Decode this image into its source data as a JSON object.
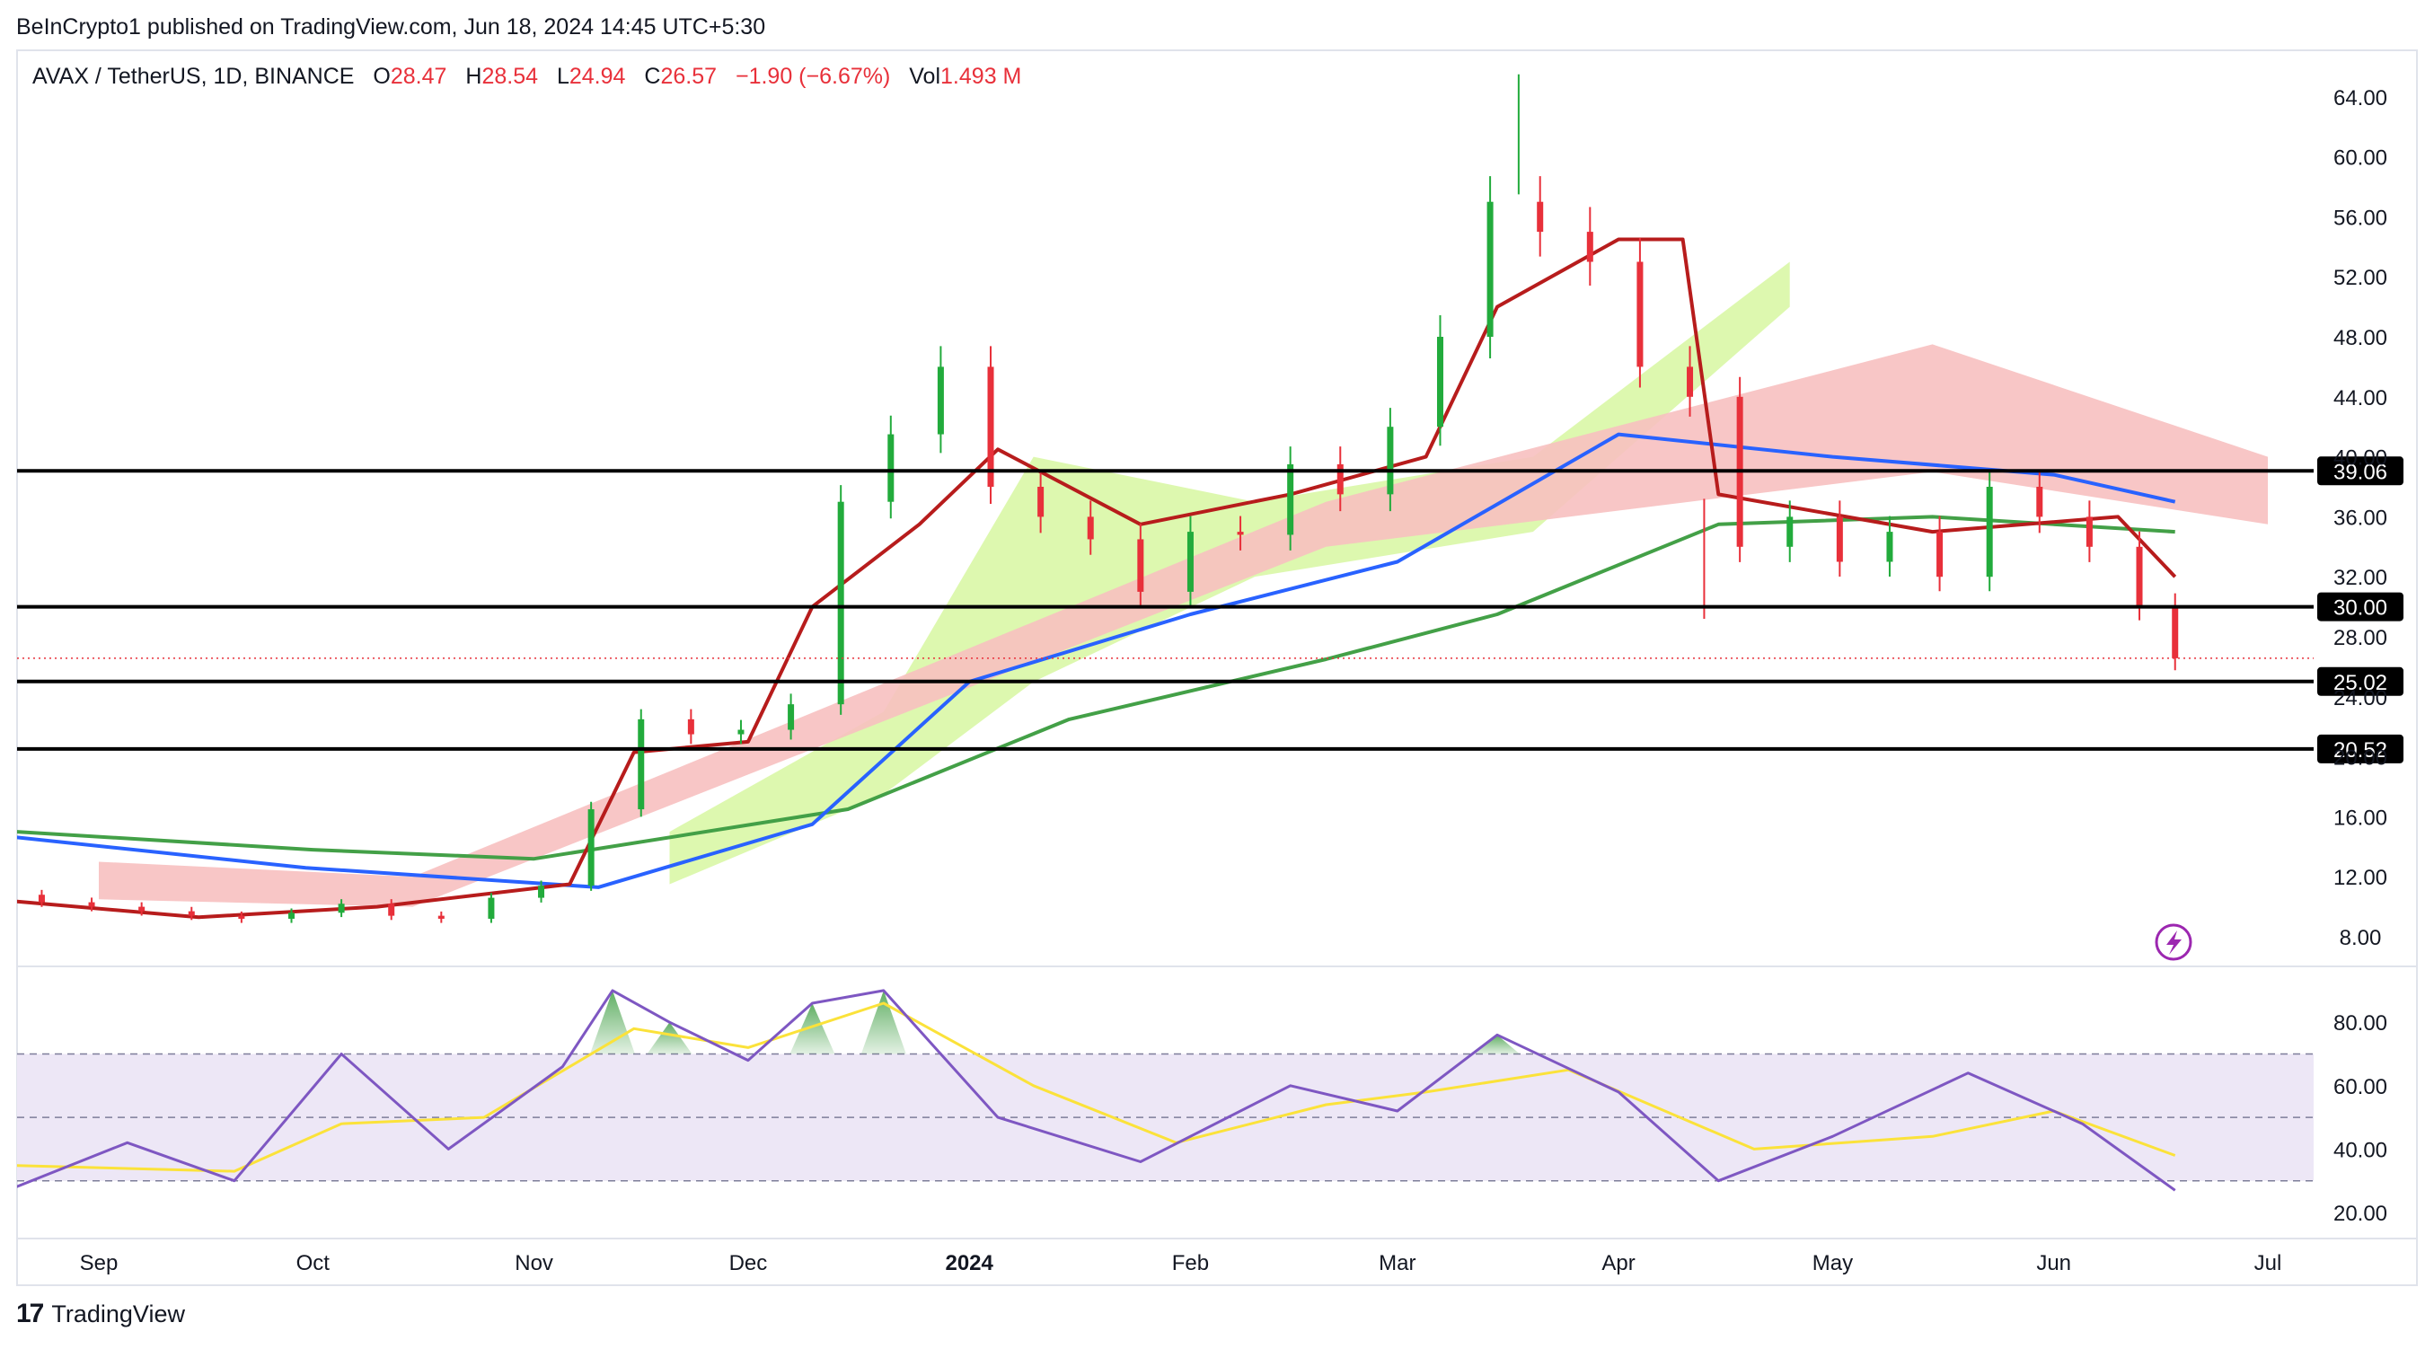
{
  "publisher": "BeInCrypto1 published on TradingView.com, Jun 18, 2024 14:45 UTC+5:30",
  "footer": {
    "logo_icon": "tradingview-logo-icon",
    "brand": "TradingView"
  },
  "colors": {
    "up": "#26a69a",
    "down": "#ef5350",
    "candle_up": "#22ab3c",
    "candle_down": "#e8303a",
    "ma_blue": "#2962ff",
    "ma_green": "#43a047",
    "ma_red": "#b71c1c",
    "cloud_bull": "#d9f7a6",
    "cloud_bear": "#f7c0c0",
    "rsi": "#7e57c2",
    "rsi_ma": "#fbe23a",
    "rsi_band": "#ede7f6"
  },
  "chart_data": [
    {
      "type": "candlestick",
      "header": {
        "symbol": "AVAX / TetherUS, 1D, BINANCE",
        "o_label": "O",
        "o": "28.47",
        "h_label": "H",
        "h": "28.54",
        "l_label": "L",
        "l": "24.94",
        "c_label": "C",
        "c": "26.57",
        "change": "−1.90 (−6.67%)",
        "vol_label": "Vol",
        "vol": "1.493 M"
      },
      "yaxis_ticks": [
        "64.00",
        "60.00",
        "56.00",
        "52.00",
        "48.00",
        "44.00",
        "40.00",
        "36.00",
        "32.00",
        "28.00",
        "24.00",
        "20.00",
        "16.00",
        "12.00",
        "8.00"
      ],
      "ylim": [
        6,
        66
      ],
      "xaxis_ticks": [
        "Sep",
        "Oct",
        "Nov",
        "Dec",
        "2024",
        "Feb",
        "Mar",
        "Apr",
        "May",
        "Jun",
        "Jul"
      ],
      "xaxis_bold": "2024",
      "levels": [
        {
          "value": 39.06,
          "label": "39.06"
        },
        {
          "value": 30.0,
          "label": "30.00"
        },
        {
          "value": 25.02,
          "label": "25.02"
        },
        {
          "value": 20.52,
          "label": "20.52"
        }
      ],
      "last_price": 26.57,
      "series_price": [
        {
          "date": "2023-08-17",
          "close": 10.8
        },
        {
          "date": "2023-08-24",
          "close": 10.3
        },
        {
          "date": "2023-08-31",
          "close": 10.0
        },
        {
          "date": "2023-09-07",
          "close": 9.7
        },
        {
          "date": "2023-09-14",
          "close": 9.4
        },
        {
          "date": "2023-09-21",
          "close": 9.2
        },
        {
          "date": "2023-09-28",
          "close": 9.6
        },
        {
          "date": "2023-10-05",
          "close": 10.2
        },
        {
          "date": "2023-10-12",
          "close": 9.4
        },
        {
          "date": "2023-10-19",
          "close": 9.2
        },
        {
          "date": "2023-10-26",
          "close": 10.6
        },
        {
          "date": "2023-11-02",
          "close": 11.4
        },
        {
          "date": "2023-11-09",
          "close": 16.5
        },
        {
          "date": "2023-11-16",
          "close": 22.5
        },
        {
          "date": "2023-11-23",
          "close": 21.5
        },
        {
          "date": "2023-11-30",
          "close": 21.8
        },
        {
          "date": "2023-12-07",
          "close": 23.5
        },
        {
          "date": "2023-12-14",
          "close": 37.0
        },
        {
          "date": "2023-12-21",
          "close": 41.5
        },
        {
          "date": "2023-12-28",
          "close": 46.0
        },
        {
          "date": "2024-01-04",
          "close": 38.0
        },
        {
          "date": "2024-01-11",
          "close": 36.0
        },
        {
          "date": "2024-01-18",
          "close": 34.5
        },
        {
          "date": "2024-01-25",
          "close": 31.0
        },
        {
          "date": "2024-02-01",
          "close": 35.0
        },
        {
          "date": "2024-02-08",
          "close": 34.8
        },
        {
          "date": "2024-02-15",
          "close": 39.5
        },
        {
          "date": "2024-02-22",
          "close": 37.5
        },
        {
          "date": "2024-02-29",
          "close": 42.0
        },
        {
          "date": "2024-03-07",
          "close": 48.0
        },
        {
          "date": "2024-03-14",
          "close": 57.0
        },
        {
          "date": "2024-03-21",
          "close": 55.0
        },
        {
          "date": "2024-03-28",
          "close": 53.0
        },
        {
          "date": "2024-04-04",
          "close": 46.0
        },
        {
          "date": "2024-04-11",
          "close": 44.0
        },
        {
          "date": "2024-04-18",
          "close": 34.0
        },
        {
          "date": "2024-04-25",
          "close": 36.0
        },
        {
          "date": "2024-05-02",
          "close": 33.0
        },
        {
          "date": "2024-05-09",
          "close": 35.0
        },
        {
          "date": "2024-05-16",
          "close": 32.0
        },
        {
          "date": "2024-05-23",
          "close": 38.0
        },
        {
          "date": "2024-05-30",
          "close": 36.0
        },
        {
          "date": "2024-06-06",
          "close": 34.0
        },
        {
          "date": "2024-06-13",
          "close": 30.0
        },
        {
          "date": "2024-06-18",
          "close": 26.57
        }
      ],
      "series_ma_blue": [
        {
          "date": "2023-08-17",
          "value": 14.8
        },
        {
          "date": "2023-09-30",
          "value": 12.6
        },
        {
          "date": "2023-11-10",
          "value": 11.3
        },
        {
          "date": "2023-12-10",
          "value": 15.5
        },
        {
          "date": "2024-01-01",
          "value": 25.0
        },
        {
          "date": "2024-02-01",
          "value": 29.5
        },
        {
          "date": "2024-03-01",
          "value": 33.0
        },
        {
          "date": "2024-04-01",
          "value": 41.5
        },
        {
          "date": "2024-05-01",
          "value": 40.0
        },
        {
          "date": "2024-06-01",
          "value": 38.8
        },
        {
          "date": "2024-06-18",
          "value": 37.0
        }
      ],
      "series_ma_green": [
        {
          "date": "2023-08-17",
          "value": 15.1
        },
        {
          "date": "2023-10-01",
          "value": 13.8
        },
        {
          "date": "2023-11-01",
          "value": 13.2
        },
        {
          "date": "2023-12-15",
          "value": 16.5
        },
        {
          "date": "2024-01-15",
          "value": 22.5
        },
        {
          "date": "2024-02-20",
          "value": 26.5
        },
        {
          "date": "2024-03-15",
          "value": 29.5
        },
        {
          "date": "2024-04-15",
          "value": 35.5
        },
        {
          "date": "2024-05-15",
          "value": 36.0
        },
        {
          "date": "2024-06-18",
          "value": 35.0
        }
      ],
      "series_ma_red": [
        {
          "date": "2023-08-17",
          "value": 10.5
        },
        {
          "date": "2023-09-15",
          "value": 9.3
        },
        {
          "date": "2023-10-10",
          "value": 10.0
        },
        {
          "date": "2023-11-06",
          "value": 11.5
        },
        {
          "date": "2023-11-15",
          "value": 20.3
        },
        {
          "date": "2023-12-01",
          "value": 21.0
        },
        {
          "date": "2023-12-10",
          "value": 30.0
        },
        {
          "date": "2023-12-25",
          "value": 35.5
        },
        {
          "date": "2024-01-05",
          "value": 40.5
        },
        {
          "date": "2024-01-25",
          "value": 35.5
        },
        {
          "date": "2024-02-15",
          "value": 37.5
        },
        {
          "date": "2024-03-05",
          "value": 40.0
        },
        {
          "date": "2024-03-15",
          "value": 50.0
        },
        {
          "date": "2024-04-01",
          "value": 54.5
        },
        {
          "date": "2024-04-10",
          "value": 54.5
        },
        {
          "date": "2024-04-15",
          "value": 37.5
        },
        {
          "date": "2024-05-15",
          "value": 35.0
        },
        {
          "date": "2024-06-10",
          "value": 36.0
        },
        {
          "date": "2024-06-18",
          "value": 32.0
        }
      ],
      "cloud_bull": [
        {
          "date": "2023-11-20",
          "top": 15.0,
          "bottom": 11.5
        },
        {
          "date": "2023-12-20",
          "top": 23.0,
          "bottom": 17.5
        },
        {
          "date": "2024-01-10",
          "top": 40.0,
          "bottom": 25.0
        },
        {
          "date": "2024-02-10",
          "top": 37.0,
          "bottom": 32.0
        },
        {
          "date": "2024-03-20",
          "top": 40.0,
          "bottom": 35.0
        },
        {
          "date": "2024-04-25",
          "top": 53.0,
          "bottom": 50.0
        }
      ],
      "cloud_bear": [
        {
          "date": "2023-09-01",
          "top": 13.0,
          "bottom": 10.5
        },
        {
          "date": "2023-10-15",
          "top": 12.0,
          "bottom": 10.0
        },
        {
          "date": "2024-02-20",
          "top": 37.0,
          "bottom": 34.0
        },
        {
          "date": "2024-05-15",
          "top": 47.5,
          "bottom": 39.0
        },
        {
          "date": "2024-07-01",
          "top": 40.0,
          "bottom": 35.5
        }
      ],
      "series_price_weekly_extremes": [
        {
          "date": "2024-03-18",
          "high": 65.5
        },
        {
          "date": "2024-04-13",
          "low": 29.2
        }
      ]
    },
    {
      "type": "line",
      "name": "",
      "yaxis_ticks": [
        "80.00",
        "60.00",
        "40.00",
        "20.00"
      ],
      "ylim": [
        15,
        95
      ],
      "band": [
        30,
        70
      ],
      "midline": 50,
      "series_rsi": [
        {
          "date": "2023-08-17",
          "value": 25
        },
        {
          "date": "2023-09-05",
          "value": 42
        },
        {
          "date": "2023-09-20",
          "value": 30
        },
        {
          "date": "2023-10-05",
          "value": 70
        },
        {
          "date": "2023-10-20",
          "value": 40
        },
        {
          "date": "2023-11-05",
          "value": 66
        },
        {
          "date": "2023-11-12",
          "value": 90
        },
        {
          "date": "2023-11-20",
          "value": 80
        },
        {
          "date": "2023-12-01",
          "value": 68
        },
        {
          "date": "2023-12-10",
          "value": 86
        },
        {
          "date": "2023-12-20",
          "value": 90
        },
        {
          "date": "2024-01-05",
          "value": 50
        },
        {
          "date": "2024-01-25",
          "value": 36
        },
        {
          "date": "2024-02-15",
          "value": 60
        },
        {
          "date": "2024-03-01",
          "value": 52
        },
        {
          "date": "2024-03-15",
          "value": 76
        },
        {
          "date": "2024-04-01",
          "value": 58
        },
        {
          "date": "2024-04-15",
          "value": 30
        },
        {
          "date": "2024-05-01",
          "value": 44
        },
        {
          "date": "2024-05-20",
          "value": 64
        },
        {
          "date": "2024-06-05",
          "value": 48
        },
        {
          "date": "2024-06-18",
          "value": 27
        }
      ],
      "series_rsi_ma": [
        {
          "date": "2023-08-17",
          "value": 35
        },
        {
          "date": "2023-09-20",
          "value": 33
        },
        {
          "date": "2023-10-05",
          "value": 48
        },
        {
          "date": "2023-10-25",
          "value": 50
        },
        {
          "date": "2023-11-15",
          "value": 78
        },
        {
          "date": "2023-12-01",
          "value": 72
        },
        {
          "date": "2023-12-20",
          "value": 86
        },
        {
          "date": "2024-01-10",
          "value": 60
        },
        {
          "date": "2024-01-30",
          "value": 42
        },
        {
          "date": "2024-02-20",
          "value": 54
        },
        {
          "date": "2024-03-05",
          "value": 58
        },
        {
          "date": "2024-03-25",
          "value": 65
        },
        {
          "date": "2024-04-20",
          "value": 40
        },
        {
          "date": "2024-05-15",
          "value": 44
        },
        {
          "date": "2024-06-01",
          "value": 52
        },
        {
          "date": "2024-06-18",
          "value": 38
        }
      ]
    }
  ],
  "icons": {
    "alert": "lightning-bolt-icon"
  }
}
